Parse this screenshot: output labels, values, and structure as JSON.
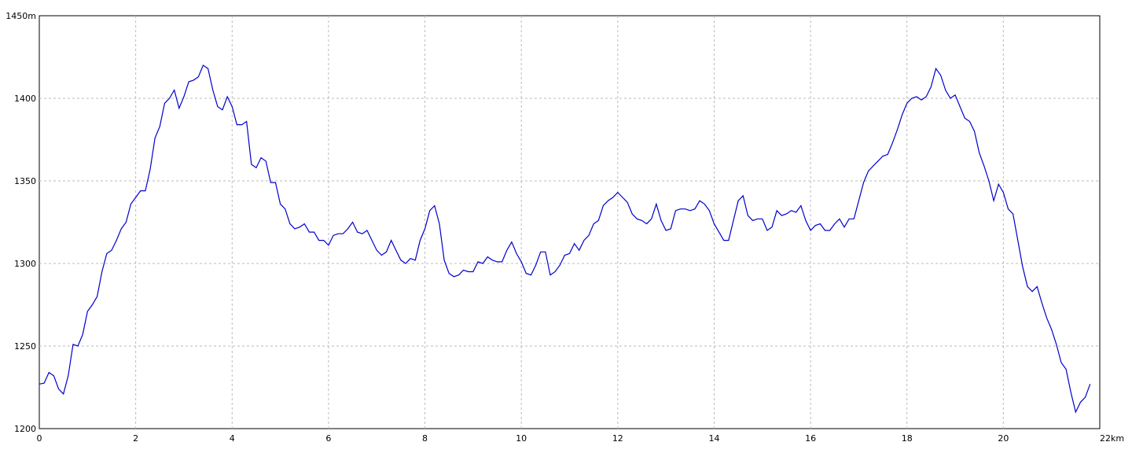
{
  "chart_data": {
    "type": "line",
    "x": [
      0,
      0.1,
      0.2,
      0.3,
      0.4,
      0.5,
      0.6,
      0.7,
      0.8,
      0.9,
      1,
      1.1,
      1.2,
      1.3,
      1.4,
      1.5,
      1.6,
      1.7,
      1.8,
      1.9,
      2,
      2.1,
      2.2,
      2.3,
      2.4,
      2.5,
      2.6,
      2.7,
      2.8,
      2.9,
      3,
      3.1,
      3.2,
      3.3,
      3.4,
      3.5,
      3.6,
      3.7,
      3.8,
      3.9,
      4,
      4.1,
      4.2,
      4.3,
      4.4,
      4.5,
      4.6,
      4.7,
      4.8,
      4.9,
      5,
      5.1,
      5.2,
      5.3,
      5.4,
      5.5,
      5.6,
      5.7,
      5.8,
      5.9,
      6,
      6.1,
      6.2,
      6.3,
      6.4,
      6.5,
      6.6,
      6.7,
      6.8,
      6.9,
      7,
      7.1,
      7.2,
      7.3,
      7.4,
      7.5,
      7.6,
      7.7,
      7.8,
      7.9,
      8,
      8.1,
      8.2,
      8.3,
      8.4,
      8.5,
      8.6,
      8.7,
      8.8,
      8.9,
      9,
      9.1,
      9.2,
      9.3,
      9.4,
      9.5,
      9.6,
      9.7,
      9.8,
      9.9,
      10,
      10.1,
      10.2,
      10.3,
      10.4,
      10.5,
      10.6,
      10.7,
      10.8,
      10.9,
      11,
      11.1,
      11.2,
      11.3,
      11.4,
      11.5,
      11.6,
      11.7,
      11.8,
      11.9,
      12,
      12.1,
      12.2,
      12.3,
      12.4,
      12.5,
      12.6,
      12.7,
      12.8,
      12.9,
      13,
      13.1,
      13.2,
      13.3,
      13.4,
      13.5,
      13.6,
      13.7,
      13.8,
      13.9,
      14,
      14.1,
      14.2,
      14.3,
      14.4,
      14.5,
      14.6,
      14.7,
      14.8,
      14.9,
      15,
      15.1,
      15.2,
      15.3,
      15.4,
      15.5,
      15.6,
      15.7,
      15.8,
      15.9,
      16,
      16.1,
      16.2,
      16.3,
      16.4,
      16.5,
      16.6,
      16.7,
      16.8,
      16.9,
      17,
      17.1,
      17.2,
      17.3,
      17.4,
      17.5,
      17.6,
      17.7,
      17.8,
      17.9,
      18,
      18.1,
      18.2,
      18.3,
      18.4,
      18.5,
      18.6,
      18.7,
      18.8,
      18.9,
      19,
      19.1,
      19.2,
      19.3,
      19.4,
      19.5,
      19.6,
      19.7,
      19.8,
      19.9,
      20,
      20.1,
      20.2,
      20.3,
      20.4,
      20.5,
      20.6,
      20.7,
      20.8,
      20.9,
      21,
      21.1,
      21.2,
      21.3,
      21.4,
      21.5,
      21.6,
      21.7,
      21.8
    ],
    "series": [
      {
        "color": "#0000cc",
        "values": [
          1227,
          1227.5,
          1234,
          1232,
          1224,
          1221,
          1232,
          1251,
          1250,
          1257,
          1271,
          1275,
          1280,
          1295,
          1306,
          1308,
          1314,
          1321,
          1325,
          1336,
          1340,
          1344,
          1344,
          1357,
          1376,
          1383,
          1397,
          1400,
          1405,
          1394,
          1401,
          1410,
          1411,
          1413,
          1420,
          1418,
          1405,
          1395,
          1393,
          1401,
          1395,
          1384,
          1384,
          1386,
          1360,
          1358,
          1364,
          1362,
          1349,
          1349,
          1336,
          1333,
          1324,
          1321,
          1322,
          1324,
          1319,
          1319,
          1314,
          1314,
          1311,
          1317,
          1318,
          1318,
          1321,
          1325,
          1319,
          1318,
          1320,
          1314,
          1308,
          1305,
          1307,
          1314,
          1308,
          1302,
          1300,
          1303,
          1302,
          1314,
          1321,
          1332,
          1335,
          1324,
          1302,
          1294,
          1292,
          1293,
          1296,
          1295,
          1295,
          1301,
          1300,
          1304,
          1302,
          1301,
          1301,
          1308,
          1313,
          1306,
          1301,
          1294,
          1293,
          1299,
          1307,
          1307,
          1293,
          1295,
          1299,
          1305,
          1306,
          1312,
          1308,
          1314,
          1317,
          1324,
          1326,
          1335,
          1338,
          1340,
          1343,
          1340,
          1337,
          1330,
          1327,
          1326,
          1324,
          1327,
          1336,
          1326,
          1320,
          1321,
          1332,
          1333,
          1333,
          1332,
          1333,
          1338,
          1336,
          1332,
          1324,
          1319,
          1314,
          1314,
          1326,
          1338,
          1341,
          1329,
          1326,
          1327,
          1327,
          1320,
          1322,
          1332,
          1329,
          1330,
          1332,
          1331,
          1335,
          1326,
          1320,
          1323,
          1324,
          1320,
          1320,
          1324,
          1327,
          1322,
          1327,
          1327,
          1338,
          1349,
          1356,
          1359,
          1362,
          1365,
          1366,
          1373,
          1381,
          1390,
          1397,
          1400,
          1401,
          1399,
          1401,
          1407,
          1418,
          1414,
          1405,
          1400,
          1402,
          1395,
          1388,
          1386,
          1380,
          1367,
          1359,
          1350,
          1338,
          1348,
          1343,
          1333,
          1330,
          1314,
          1298,
          1286,
          1283,
          1286,
          1276,
          1267,
          1260,
          1251,
          1240,
          1236,
          1222,
          1210,
          1216,
          1219,
          1227
        ]
      }
    ],
    "xlim": [
      0,
      22
    ],
    "ylim": [
      1200,
      1450
    ],
    "xticks": [
      0,
      2,
      4,
      6,
      8,
      10,
      12,
      14,
      16,
      18,
      20,
      {
        "value": 22,
        "label": "22km"
      }
    ],
    "yticks": [
      1200,
      1250,
      1300,
      1350,
      1400,
      {
        "value": 1450,
        "label": "1450m"
      }
    ],
    "grid": true
  }
}
